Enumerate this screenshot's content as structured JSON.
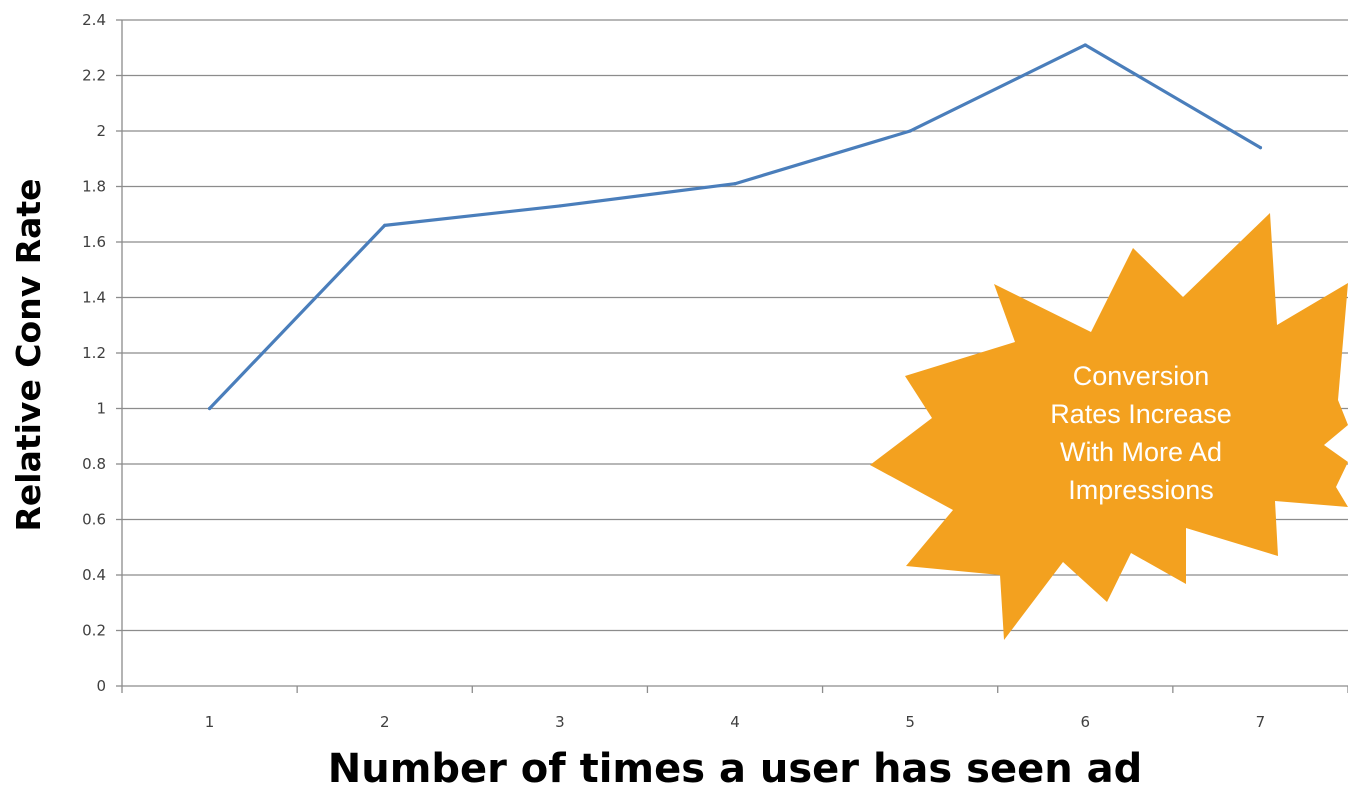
{
  "chart_data": {
    "type": "line",
    "x": [
      1,
      2,
      3,
      4,
      5,
      6,
      7
    ],
    "series": [
      {
        "values": [
          1.0,
          1.66,
          1.73,
          1.81,
          2.0,
          2.31,
          1.94
        ]
      }
    ],
    "xlabel": "Number of times a user has seen ad",
    "ylabel": "Relative Conv Rate",
    "xlim": [
      0.5,
      7.5
    ],
    "ylim": [
      0,
      2.4
    ],
    "y_ticks": [
      "0",
      "0.2",
      "0.4",
      "0.6",
      "0.8",
      "1",
      "1.2",
      "1.4",
      "1.6",
      "1.8",
      "2",
      "2.2",
      "2.4"
    ],
    "x_ticks": [
      "1",
      "2",
      "3",
      "4",
      "5",
      "6",
      "7"
    ],
    "grid": "horizontal",
    "annotation": {
      "lines": [
        "Conversion",
        "Rates Increase",
        "With More Ad",
        "Impressions"
      ]
    },
    "colors": {
      "line": "#4a7ebb",
      "grid": "#8c8c8c",
      "burst": "#f3a11f",
      "burst_text": "#ffffff"
    }
  }
}
